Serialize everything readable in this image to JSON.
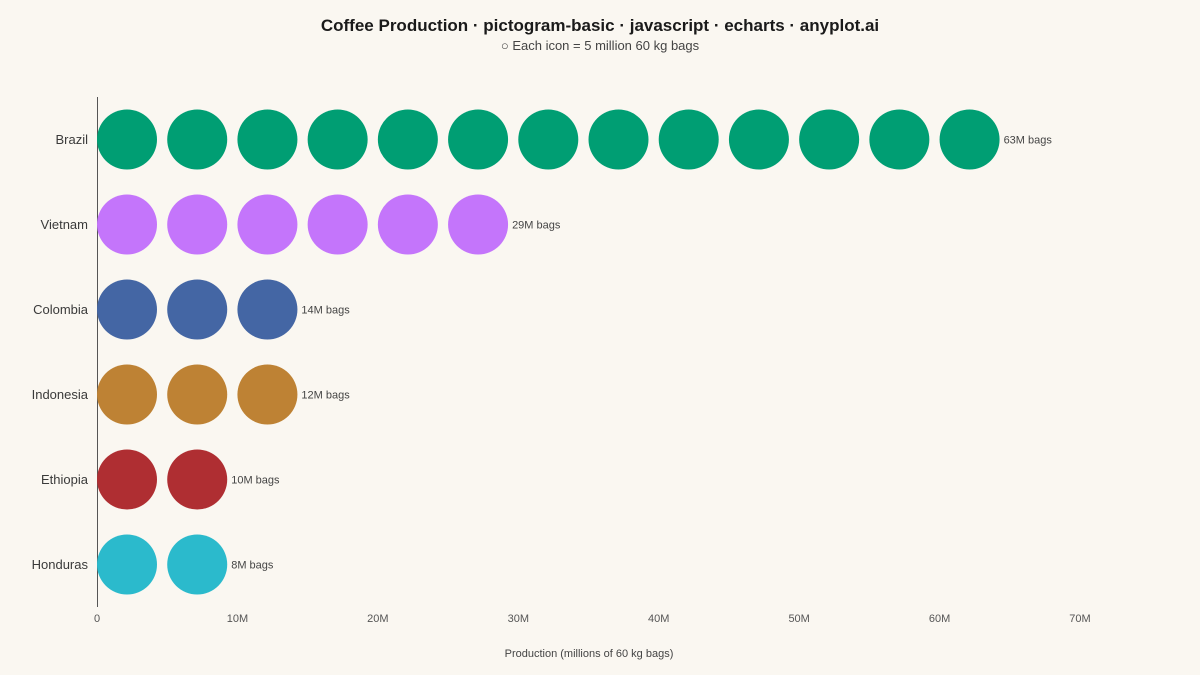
{
  "chart_data": {
    "type": "pictogram",
    "title": "Coffee Production · pictogram-basic · javascript · echarts · anyplot.ai",
    "subtitle": "○  Each icon = 5 million 60 kg bags",
    "xlabel": "Production (millions of 60 kg bags)",
    "ylabel": "",
    "xlim": [
      0,
      70
    ],
    "unit_per_icon": 5,
    "x_ticks": [
      0,
      10,
      20,
      30,
      40,
      50,
      60,
      70
    ],
    "x_tick_labels": [
      "0",
      "10M",
      "20M",
      "30M",
      "40M",
      "50M",
      "60M",
      "70M"
    ],
    "categories": [
      "Brazil",
      "Vietnam",
      "Colombia",
      "Indonesia",
      "Ethiopia",
      "Honduras"
    ],
    "values": [
      63,
      29,
      14,
      12,
      10,
      8
    ],
    "data_labels": [
      "63M bags",
      "29M bags",
      "14M bags",
      "12M bags",
      "10M bags",
      "8M bags"
    ],
    "colors": [
      "#009E73",
      "#C475FB",
      "#4466A4",
      "#BE8234",
      "#AF2E32",
      "#2BBACC"
    ],
    "grid": false,
    "legend": "none"
  }
}
